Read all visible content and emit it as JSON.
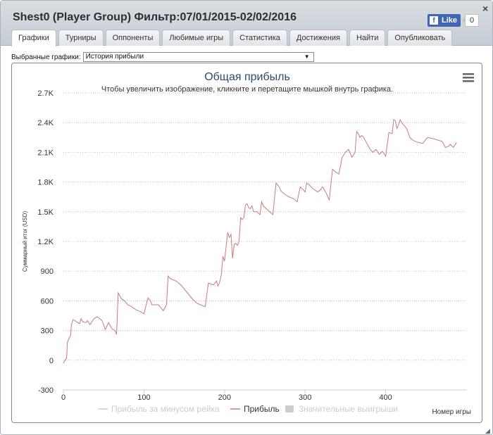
{
  "window": {
    "title": "Shest0 (Player Group) Фильтр:07/01/2015-02/02/2016",
    "close_label": "×"
  },
  "facebook": {
    "like_label": "Like",
    "logo": "f",
    "count": "0"
  },
  "tabs": [
    {
      "label": "Графики",
      "active": true
    },
    {
      "label": "Турниры"
    },
    {
      "label": "Оппоненты"
    },
    {
      "label": "Любимые игры"
    },
    {
      "label": "Статистика"
    },
    {
      "label": "Достижения"
    },
    {
      "label": "Найти"
    },
    {
      "label": "Опубликовать"
    }
  ],
  "selector": {
    "label": "Выбранные графики:",
    "value": "История прибыли",
    "arrow": "▼"
  },
  "chart_data": {
    "type": "line",
    "title": "Общая прибыль",
    "subtitle": "Чтобы увеличить изображение, кликните и перетащите мышкой внутрь графика.",
    "xlabel": "Номер игры",
    "ylabel": "Суммарный итог (USD)",
    "xlim": [
      0,
      500
    ],
    "ylim": [
      -300,
      2700
    ],
    "xticks": [
      "0",
      "100",
      "200",
      "300",
      "400"
    ],
    "xtick_values": [
      0,
      100,
      200,
      300,
      400
    ],
    "yticks": [
      "-300",
      "0",
      "300",
      "600",
      "900",
      "1.2K",
      "1.5K",
      "1.8K",
      "2.1K",
      "2.4K",
      "2.7K"
    ],
    "ytick_values": [
      -300,
      0,
      300,
      600,
      900,
      1200,
      1500,
      1800,
      2100,
      2400,
      2700
    ],
    "grid": true,
    "legend_position": "bottom",
    "legend": [
      {
        "name": "Прибыль за минусом рейка",
        "color": "#cccccc",
        "style": "line"
      },
      {
        "name": "Прибыль",
        "color": "#c97b7b",
        "style": "line"
      },
      {
        "name": "Значительные выигрыши",
        "color": "#cccccc",
        "style": "box"
      }
    ],
    "series": [
      {
        "name": "Прибыль",
        "color": "#c97b7b",
        "x": [
          0,
          2,
          4,
          5,
          7,
          9,
          10,
          12,
          14,
          18,
          20,
          22,
          24,
          28,
          30,
          33,
          38,
          42,
          48,
          52,
          56,
          60,
          64,
          66,
          68,
          70,
          72,
          76,
          80,
          85,
          90,
          96,
          100,
          105,
          108,
          110,
          112,
          118,
          124,
          128,
          130,
          132,
          134,
          140,
          146,
          150,
          156,
          160,
          165,
          170,
          176,
          180,
          186,
          190,
          192,
          194,
          196,
          198,
          200,
          202,
          204,
          206,
          208,
          210,
          212,
          214,
          216,
          218,
          220,
          222,
          224,
          226,
          228,
          230,
          232,
          234,
          236,
          240,
          244,
          246,
          248,
          252,
          256,
          260,
          264,
          266,
          268,
          270,
          274,
          280,
          286,
          290,
          294,
          298,
          300,
          302,
          304,
          310,
          316,
          322,
          326,
          330,
          334,
          338,
          342,
          346,
          350,
          354,
          358,
          362,
          364,
          366,
          368,
          370,
          372,
          376,
          380,
          384,
          388,
          392,
          396,
          400,
          404,
          408,
          410,
          412,
          414,
          416,
          418,
          420,
          422,
          424,
          426,
          428,
          430,
          434,
          440,
          446,
          452,
          458,
          462,
          466,
          470,
          474,
          478,
          480,
          484,
          488
        ],
        "y": [
          -30,
          0,
          20,
          180,
          220,
          250,
          360,
          410,
          400,
          380,
          370,
          420,
          390,
          380,
          400,
          360,
          420,
          440,
          400,
          310,
          380,
          320,
          300,
          260,
          680,
          650,
          620,
          600,
          560,
          540,
          510,
          490,
          470,
          630,
          600,
          560,
          560,
          560,
          500,
          560,
          850,
          830,
          820,
          800,
          760,
          720,
          660,
          620,
          580,
          560,
          540,
          780,
          760,
          800,
          750,
          790,
          860,
          1050,
          1000,
          1150,
          1290,
          1240,
          1270,
          1030,
          1170,
          1180,
          1160,
          1200,
          1440,
          1420,
          1440,
          1570,
          1580,
          1540,
          1530,
          1560,
          1500,
          1500,
          1470,
          1600,
          1560,
          1530,
          1500,
          1470,
          1790,
          1770,
          1750,
          1710,
          1680,
          1650,
          1630,
          1600,
          1750,
          1720,
          1700,
          1790,
          1780,
          1730,
          1700,
          1750,
          1690,
          1620,
          1930,
          1900,
          1880,
          2050,
          2100,
          2130,
          2050,
          2100,
          2310,
          2290,
          2250,
          2270,
          2260,
          2200,
          2140,
          2100,
          2130,
          2080,
          2110,
          2060,
          2300,
          2290,
          2430,
          2420,
          2340,
          2380,
          2430,
          2400,
          2380,
          2360,
          2340,
          2300,
          2250,
          2220,
          2200,
          2190,
          2250,
          2240,
          2230,
          2220,
          2210,
          2150,
          2160,
          2180,
          2150,
          2200
        ]
      }
    ]
  }
}
